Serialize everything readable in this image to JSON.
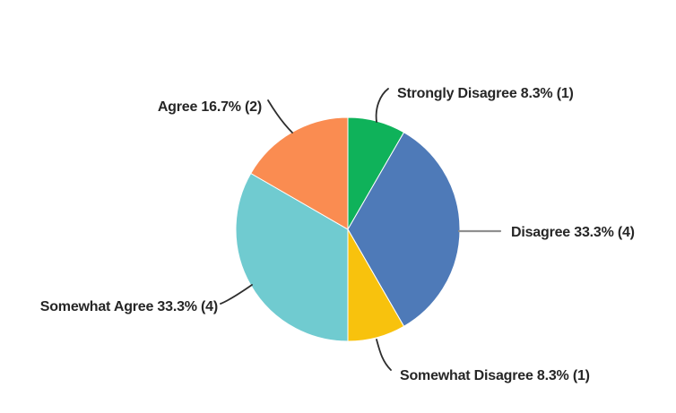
{
  "background_color": "#ffffff",
  "chart_data": {
    "type": "pie",
    "title": "",
    "legend_position": "none",
    "label_style": "callout-labels-with-leader-lines",
    "start_angle_deg": 0,
    "direction": "clockwise",
    "slices": [
      {
        "id": "strongly-disagree",
        "label": "Strongly Disagree",
        "percent": "8.3%",
        "count": 1,
        "value": 8.3,
        "color": "#0fb25a",
        "display": "Strongly Disagree 8.3% (1)"
      },
      {
        "id": "disagree",
        "label": "Disagree",
        "percent": "33.3%",
        "count": 4,
        "value": 33.3,
        "color": "#4e7ab8",
        "display": "Disagree 33.3% (4)"
      },
      {
        "id": "somewhat-disagree",
        "label": "Somewhat Disagree",
        "percent": "8.3%",
        "count": 1,
        "value": 8.3,
        "color": "#f8c20d",
        "display": "Somewhat Disagree 8.3% (1)"
      },
      {
        "id": "somewhat-agree",
        "label": "Somewhat Agree",
        "percent": "33.3%",
        "count": 4,
        "value": 33.3,
        "color": "#70cbd0",
        "display": "Somewhat Agree 33.3% (4)"
      },
      {
        "id": "agree",
        "label": "Agree",
        "percent": "16.7%",
        "count": 2,
        "value": 16.7,
        "color": "#fa8c51",
        "display": "Agree 16.7% (2)"
      }
    ],
    "leader_line_colors": {
      "default": "#2e2e2e",
      "disagree": "#8f8f8f"
    },
    "slice_border_color": "#ffffff",
    "label_text_color": "#262626"
  }
}
